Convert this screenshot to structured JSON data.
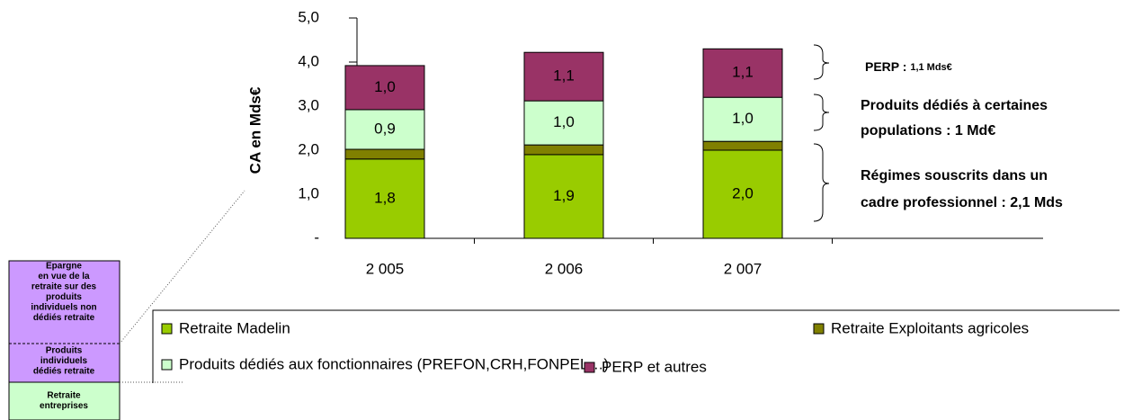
{
  "chart_data": {
    "type": "stacked_bar",
    "y_label": "CA en Mds€",
    "categories": [
      "2 005",
      "2 006",
      "2 007"
    ],
    "series": [
      {
        "name": "Retraite Madelin",
        "color": "#99cc00",
        "values": [
          1.8,
          1.9,
          2.0
        ],
        "value_labels": [
          "1,8",
          "1,9",
          "2,0"
        ]
      },
      {
        "name": "Retraite Exploitants agricoles",
        "color": "#808000",
        "values": [
          0.22,
          0.22,
          0.2
        ]
      },
      {
        "name": "Produits dédiés aux fonctionnaires (PREFON,CRH,FONPEL…)",
        "color": "#ccffcc",
        "values": [
          0.9,
          1.0,
          1.0
        ],
        "value_labels": [
          "0,9",
          "1,0",
          "1,0"
        ]
      },
      {
        "name": "PERP et autres",
        "color": "#993366",
        "values": [
          1.0,
          1.1,
          1.1
        ],
        "value_labels": [
          "1,0",
          "1,1",
          "1,1"
        ]
      }
    ],
    "ylim": [
      0,
      5
    ],
    "yticks": [
      {
        "value": 0,
        "label": "-"
      },
      {
        "value": 1,
        "label": "1,0"
      },
      {
        "value": 2,
        "label": "2,0"
      },
      {
        "value": 3,
        "label": "3,0"
      },
      {
        "value": 4,
        "label": "4,0"
      },
      {
        "value": 5,
        "label": "5,0"
      }
    ],
    "annotations": {
      "perp": {
        "label": "PERP :",
        "detail": "1,1 Mds€"
      },
      "populations": [
        "Produits dédiés à certaines",
        "populations : 1 Md€"
      ],
      "regimes": [
        "Régimes souscrits dans un",
        "cadre professionnel : 2,1 Mds"
      ]
    },
    "side_boxes": [
      [
        "Epargne",
        "en vue de la",
        "retraite sur des",
        "produits",
        "individuels non",
        "dédiés retraite"
      ],
      [
        "Produits",
        "individuels",
        "dédiés retraite"
      ],
      [
        "Retraite",
        "entreprises"
      ]
    ]
  }
}
